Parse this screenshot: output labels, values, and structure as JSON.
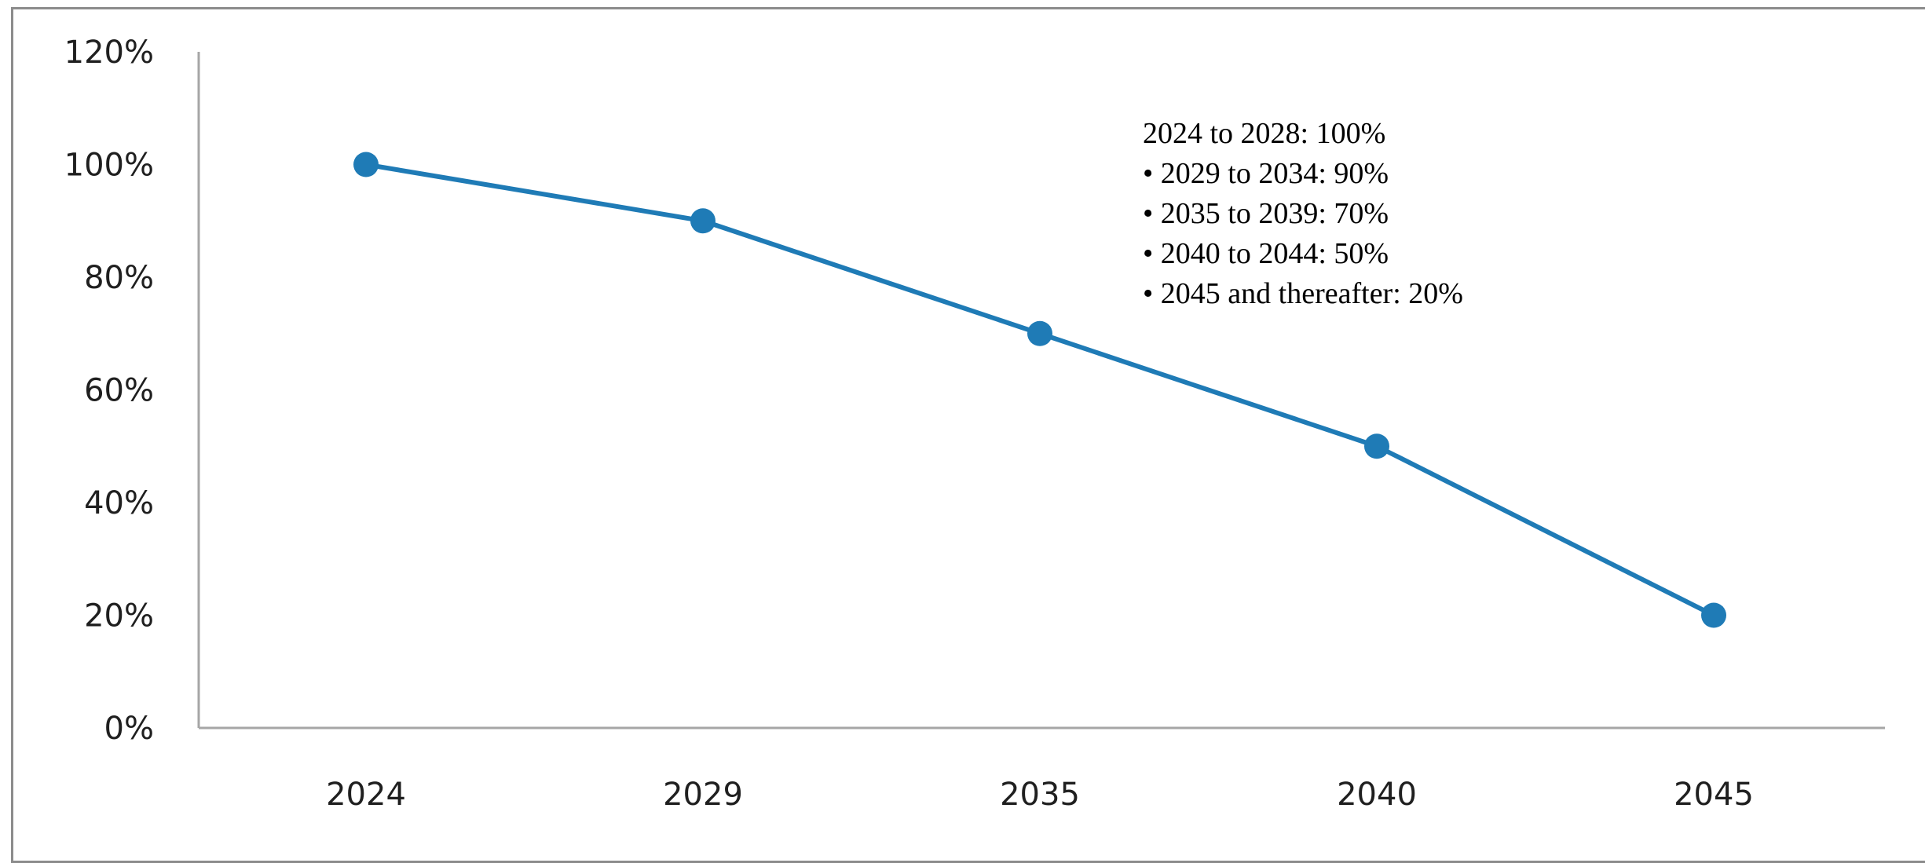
{
  "chart_data": {
    "type": "line",
    "title": "",
    "xlabel": "",
    "ylabel": "",
    "categories": [
      "2024",
      "2029",
      "2035",
      "2040",
      "2045"
    ],
    "series": [
      {
        "values": [
          100,
          90,
          70,
          50,
          20
        ]
      }
    ],
    "y_ticks": [
      "0%",
      "20%",
      "40%",
      "60%",
      "80%",
      "100%",
      "120%"
    ],
    "ylim": [
      0,
      120
    ],
    "y_unit": "%",
    "grid": false,
    "legend": "none",
    "colors": {
      "series": "#1f7bb6",
      "axis": "#a6a6a6",
      "frame": "#8c8c8c"
    },
    "annotation": [
      "2024 to 2028: 100%",
      "• 2029 to 2034: 90%",
      "• 2035 to 2039: 70%",
      "• 2040 to 2044: 50%",
      "• 2045 and thereafter: 20%"
    ]
  }
}
